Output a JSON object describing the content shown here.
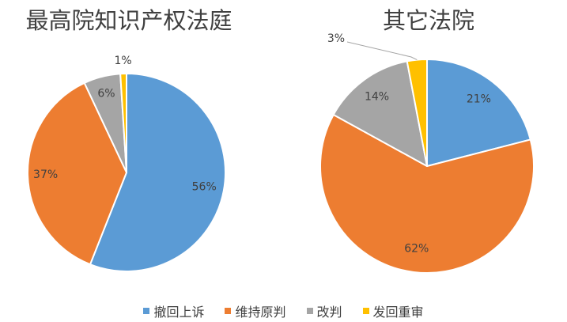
{
  "chart_data": [
    {
      "type": "pie",
      "title": "最高院知识产权法庭",
      "categories": [
        "撤回上诉",
        "维持原判",
        "改判",
        "发回重审"
      ],
      "values": [
        56,
        37,
        6,
        1
      ],
      "labels": [
        "56%",
        "37%",
        "6%",
        "1%"
      ],
      "colors": [
        "#5B9BD5",
        "#ED7D31",
        "#A5A5A5",
        "#FFC000"
      ],
      "legend": "bottom"
    },
    {
      "type": "pie",
      "title": "其它法院",
      "categories": [
        "撤回上诉",
        "维持原判",
        "改判",
        "发回重审"
      ],
      "values": [
        21,
        62,
        14,
        3
      ],
      "labels": [
        "21%",
        "62%",
        "14%",
        "3%"
      ],
      "colors": [
        "#5B9BD5",
        "#ED7D31",
        "#A5A5A5",
        "#FFC000"
      ],
      "legend": "bottom"
    }
  ]
}
